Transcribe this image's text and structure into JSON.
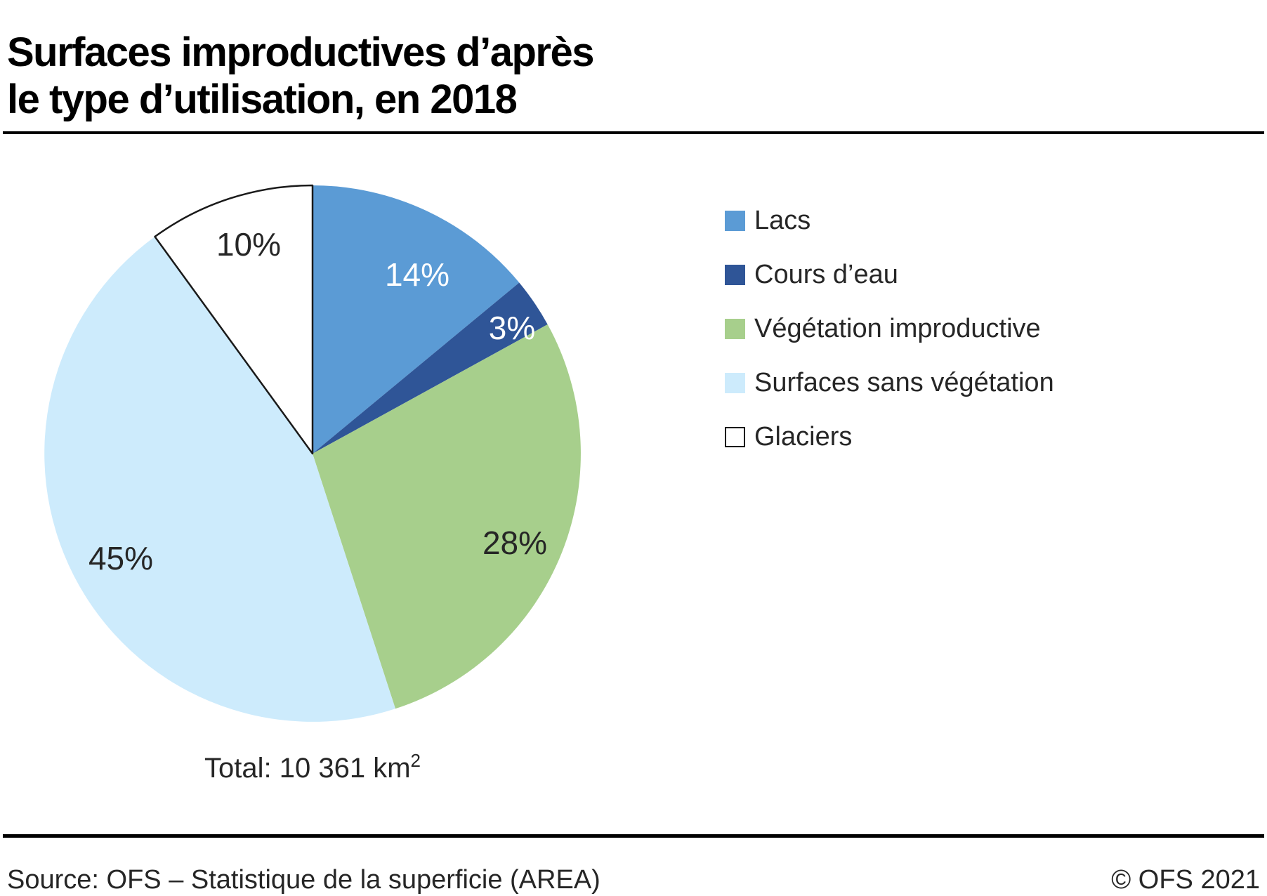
{
  "header": {
    "title_line1": "Surfaces improductives d’après",
    "title_line2": "le type d’utilisation, en 2018"
  },
  "chart_data": {
    "type": "pie",
    "title": "Surfaces improductives d’après le type d’utilisation, en 2018",
    "unit": "%",
    "start_angle_deg": 0,
    "direction": "clockwise",
    "legend_position": "right",
    "slices": [
      {
        "label": "Lacs",
        "value": 14,
        "color": "#5B9BD5",
        "label_color": "#FFFFFF"
      },
      {
        "label": "Cours d’eau",
        "value": 3,
        "color": "#2F5597",
        "label_color": "#FFFFFF"
      },
      {
        "label": "Végétation improductive",
        "value": 28,
        "color": "#A7CF8C",
        "label_color": "#262626"
      },
      {
        "label": "Surfaces sans végétation",
        "value": 45,
        "color": "#CDEBFC",
        "label_color": "#262626"
      },
      {
        "label": "Glaciers",
        "value": 10,
        "color": "#FFFFFF",
        "label_color": "#262626",
        "border_color": "#1A1A1A"
      }
    ],
    "total_note": "Total: 10 361 km²"
  },
  "total": {
    "prefix": "Total: 10 361 km",
    "superscript": "2"
  },
  "footer": {
    "source": "Source: OFS – Statistique de la superficie (AREA)",
    "copyright": "© OFS 2021"
  }
}
